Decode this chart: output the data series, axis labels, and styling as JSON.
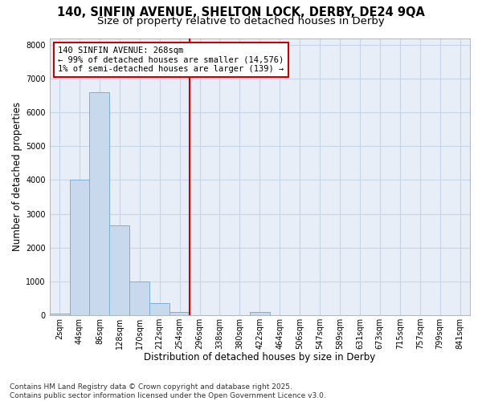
{
  "title_line1": "140, SINFIN AVENUE, SHELTON LOCK, DERBY, DE24 9QA",
  "title_line2": "Size of property relative to detached houses in Derby",
  "xlabel": "Distribution of detached houses by size in Derby",
  "ylabel": "Number of detached properties",
  "bar_labels": [
    "2sqm",
    "44sqm",
    "86sqm",
    "128sqm",
    "170sqm",
    "212sqm",
    "254sqm",
    "296sqm",
    "338sqm",
    "380sqm",
    "422sqm",
    "464sqm",
    "506sqm",
    "547sqm",
    "589sqm",
    "631sqm",
    "673sqm",
    "715sqm",
    "757sqm",
    "799sqm",
    "841sqm"
  ],
  "bar_values": [
    50,
    4000,
    6600,
    2650,
    1000,
    350,
    100,
    0,
    0,
    0,
    100,
    0,
    0,
    0,
    0,
    0,
    0,
    0,
    0,
    0,
    0
  ],
  "bar_color": "#c8d8ed",
  "bar_edge_color": "#7bafd4",
  "vline_x_index": 6.5,
  "vline_color": "#cc0000",
  "annotation_text": "140 SINFIN AVENUE: 268sqm\n← 99% of detached houses are smaller (14,576)\n1% of semi-detached houses are larger (139) →",
  "annotation_box_color": "white",
  "annotation_box_edge_color": "#cc0000",
  "ylim": [
    0,
    8200
  ],
  "yticks": [
    0,
    1000,
    2000,
    3000,
    4000,
    5000,
    6000,
    7000,
    8000
  ],
  "grid_color": "#c8d4e8",
  "bg_color": "#e8eef8",
  "footnote": "Contains HM Land Registry data © Crown copyright and database right 2025.\nContains public sector information licensed under the Open Government Licence v3.0.",
  "title_fontsize": 10.5,
  "subtitle_fontsize": 9.5,
  "axis_label_fontsize": 8.5,
  "tick_fontsize": 7,
  "annotation_fontsize": 7.5,
  "footnote_fontsize": 6.5
}
